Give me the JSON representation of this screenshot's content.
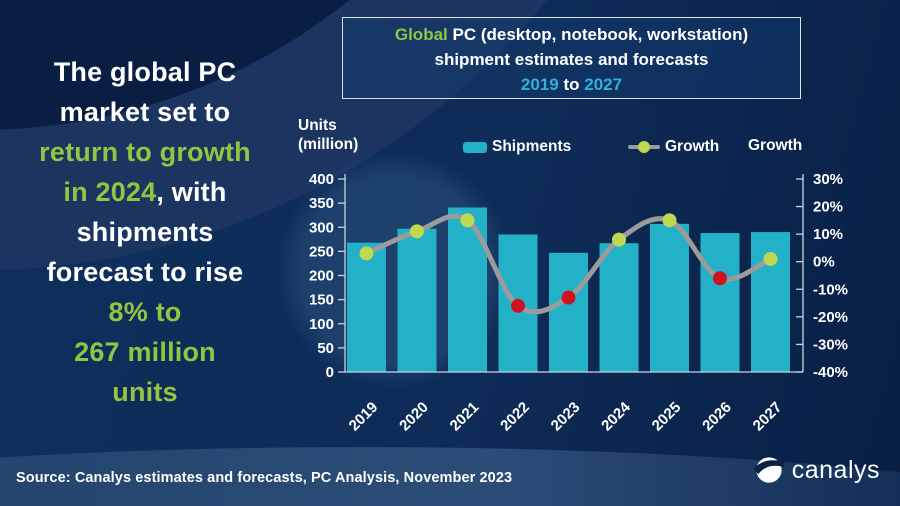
{
  "headline": {
    "lines": [
      [
        {
          "t": "The global PC",
          "c": "w"
        }
      ],
      [
        {
          "t": "market set to",
          "c": "w"
        }
      ],
      [
        {
          "t": "return to growth",
          "c": "g"
        }
      ],
      [
        {
          "t": "in 2024",
          "c": "g"
        },
        {
          "t": ", with",
          "c": "w"
        }
      ],
      [
        {
          "t": "shipments",
          "c": "w"
        }
      ],
      [
        {
          "t": "forecast to rise",
          "c": "w"
        }
      ],
      [
        {
          "t": "8% to",
          "c": "g"
        }
      ],
      [
        {
          "t": "267 million",
          "c": "g"
        }
      ],
      [
        {
          "t": "units",
          "c": "g"
        }
      ]
    ]
  },
  "title_box": {
    "lines": [
      [
        {
          "t": "Global",
          "c": "g"
        },
        {
          "t": " PC (desktop, notebook, workstation)",
          "c": "w"
        }
      ],
      [
        {
          "t": "shipment estimates and forecasts",
          "c": "w"
        }
      ],
      [
        {
          "t": "2019",
          "c": "c"
        },
        {
          "t": " to ",
          "c": "w"
        },
        {
          "t": "2027",
          "c": "c"
        }
      ]
    ]
  },
  "axis_titles": {
    "units_line1": "Units",
    "units_line2": "(million)",
    "growth": "Growth"
  },
  "legend": {
    "shipments": "Shipments",
    "growth": "Growth"
  },
  "footer": {
    "source": "Source: Canalys estimates and forecasts, PC Analysis, November 2023",
    "logo_text": "canalys"
  },
  "colors": {
    "bar": "#22b1c6",
    "line": "#9b9b9b",
    "dot_positive": "#bfd850",
    "dot_negative": "#cf1220",
    "accent_green": "#8fc642",
    "accent_cyan": "#30b2d6",
    "axis": "#c9d3e2",
    "text": "#ffffff",
    "background": "#0d2c57"
  },
  "chart_data": {
    "type": "combo-bar-line",
    "title": "Global PC (desktop, notebook, workstation) shipment estimates and forecasts 2019 to 2027",
    "categories": [
      "2019",
      "2020",
      "2021",
      "2022",
      "2023",
      "2024",
      "2025",
      "2026",
      "2027"
    ],
    "series": [
      {
        "name": "Shipments",
        "type": "bar",
        "unit": "million units",
        "values": [
          268,
          297,
          341,
          285,
          247,
          267,
          307,
          288,
          290
        ]
      },
      {
        "name": "Growth",
        "type": "line",
        "unit": "percent",
        "values": [
          3,
          11,
          15,
          -16,
          -13,
          8,
          15,
          -6,
          1
        ]
      }
    ],
    "left_axis": {
      "title": "Units (million)",
      "min": 0,
      "max": 400,
      "step": 50
    },
    "right_axis": {
      "title": "Growth",
      "min": -40,
      "max": 30,
      "step": 10,
      "format": "percent"
    },
    "gridlines": false,
    "legend_position": "top"
  }
}
